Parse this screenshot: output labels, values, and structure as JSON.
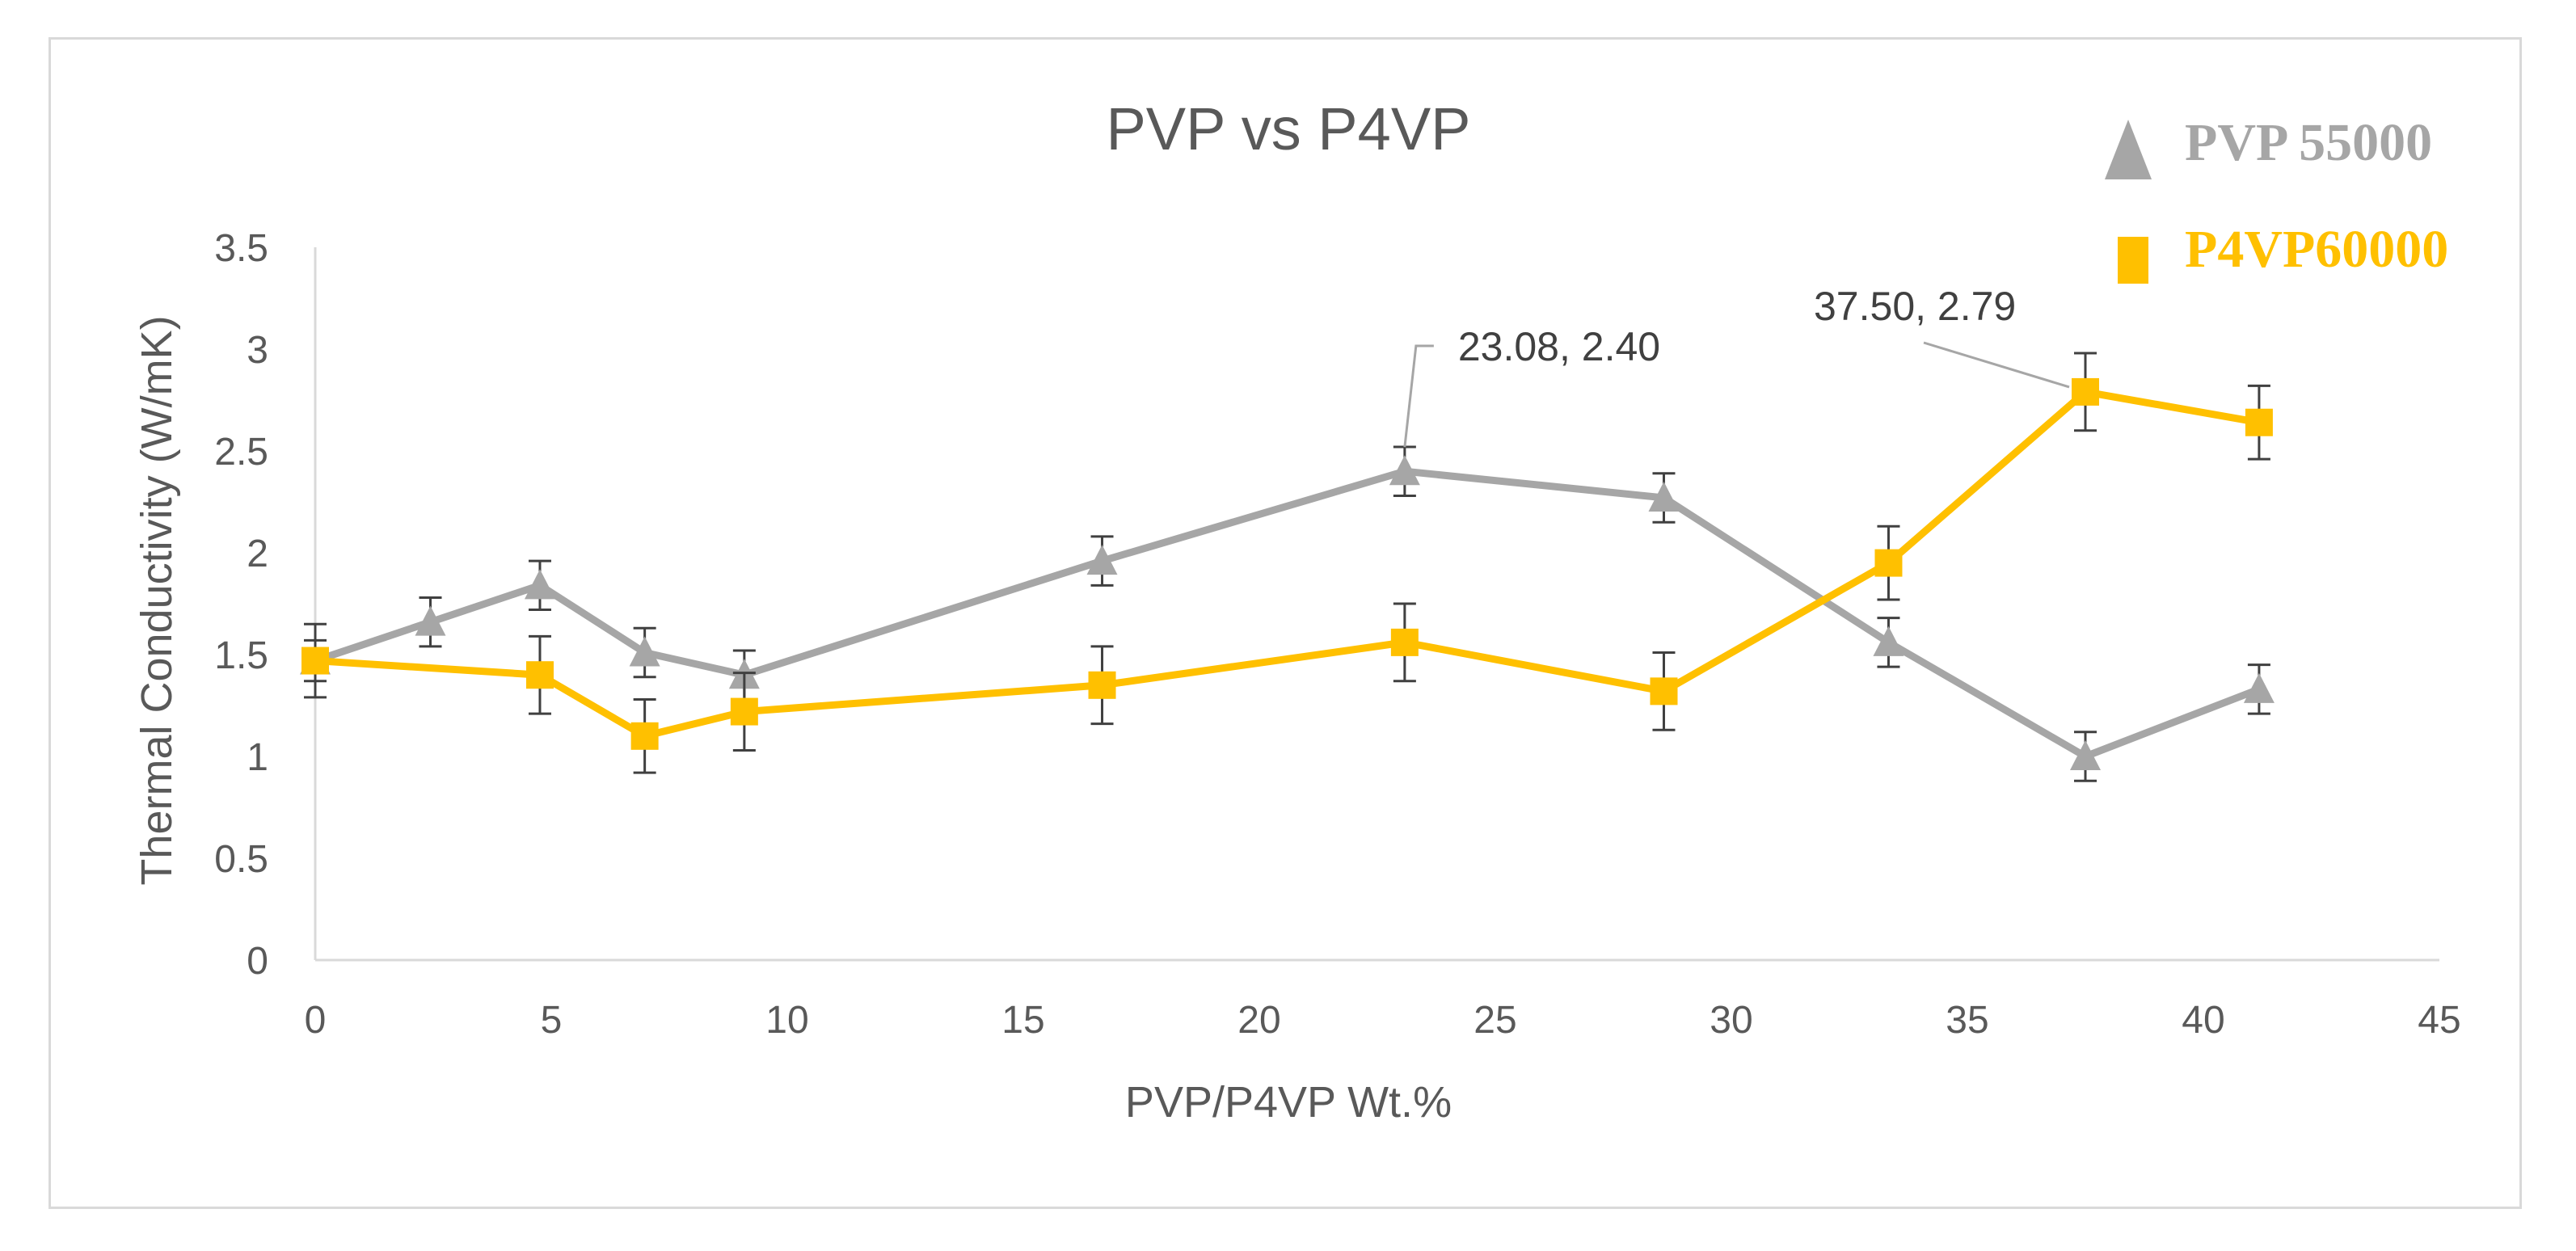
{
  "chart_data": {
    "type": "line",
    "title": "PVP vs P4VP",
    "xlabel": "PVP/P4VP Wt.%",
    "ylabel": "Thermal Conductivity (W/mK)",
    "xlim": [
      0,
      45
    ],
    "ylim": [
      0,
      3.5
    ],
    "xticks": [
      0,
      5,
      10,
      15,
      20,
      25,
      30,
      35,
      40,
      45
    ],
    "yticks": [
      0,
      0.5,
      1,
      1.5,
      2,
      2.5,
      3,
      3.5
    ],
    "xtick_labels": [
      "0",
      "5",
      "10",
      "15",
      "20",
      "25",
      "30",
      "35",
      "40",
      "45"
    ],
    "ytick_labels": [
      "0",
      "0.5",
      "1",
      "1.5",
      "2",
      "2.5",
      "3",
      "3.5"
    ],
    "grid": false,
    "legend_position": "top-right",
    "series": [
      {
        "name": "PVP 55000",
        "marker": "triangle",
        "color": "#A6A6A6",
        "x": [
          0,
          2.44,
          4.76,
          6.98,
          9.09,
          16.67,
          23.08,
          28.57,
          33.33,
          37.5,
          41.18
        ],
        "y": [
          1.47,
          1.66,
          1.84,
          1.51,
          1.4,
          1.96,
          2.4,
          2.27,
          1.56,
          1.0,
          1.33
        ],
        "err": [
          0.1,
          0.12,
          0.12,
          0.12,
          0.12,
          0.12,
          0.12,
          0.12,
          0.12,
          0.12,
          0.12
        ]
      },
      {
        "name": "P4VP60000",
        "marker": "square",
        "color": "#FFC000",
        "x": [
          0,
          4.76,
          6.98,
          9.09,
          16.67,
          23.08,
          28.57,
          33.33,
          37.5,
          41.18
        ],
        "y": [
          1.47,
          1.4,
          1.1,
          1.22,
          1.35,
          1.56,
          1.32,
          1.95,
          2.79,
          2.64
        ],
        "err": [
          0.18,
          0.19,
          0.18,
          0.19,
          0.19,
          0.19,
          0.19,
          0.18,
          0.19,
          0.18
        ]
      }
    ],
    "annotations": [
      {
        "text": "23.08, 2.40",
        "series": 0,
        "x": 23.08,
        "y": 2.4
      },
      {
        "text": "37.50, 2.79",
        "series": 1,
        "x": 37.5,
        "y": 2.79
      }
    ]
  }
}
